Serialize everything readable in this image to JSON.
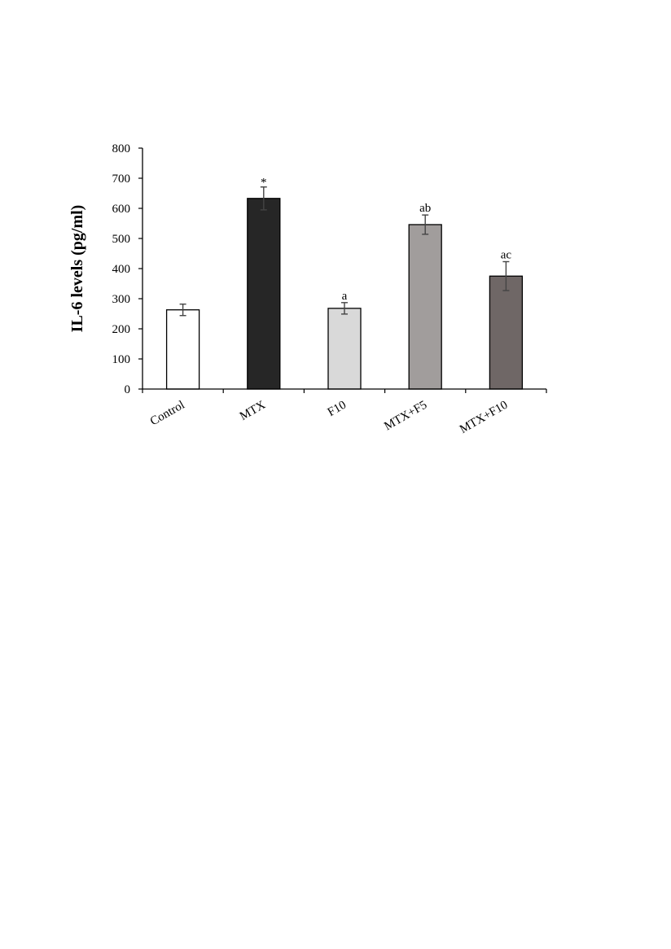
{
  "chart_data": {
    "type": "bar",
    "ylabel": "IL-6 levels (pg/ml)",
    "xlabel": "",
    "ylim": [
      0,
      800
    ],
    "yticks": [
      0,
      100,
      200,
      300,
      400,
      500,
      600,
      700,
      800
    ],
    "categories": [
      "Control",
      "MTX",
      "F10",
      "MTX+F5",
      "MTX+F10"
    ],
    "values": [
      263,
      633,
      268,
      546,
      375
    ],
    "errors": [
      19,
      38,
      19,
      32,
      48
    ],
    "annotations": [
      "",
      "*",
      "a",
      "ab",
      "ac"
    ],
    "colors": [
      "#ffffff",
      "#262626",
      "#d9d9d9",
      "#a19d9c",
      "#6f6766"
    ],
    "grid": false,
    "legend": "none"
  }
}
